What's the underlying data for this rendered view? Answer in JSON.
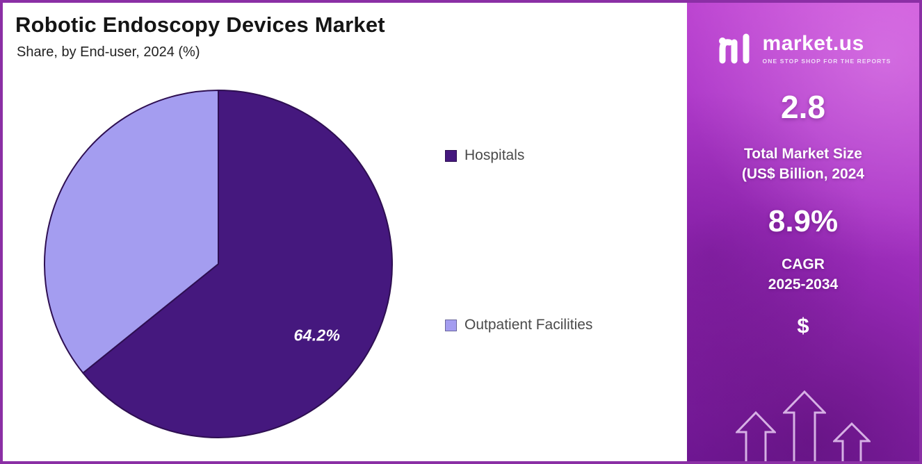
{
  "header": {
    "title": "Robotic Endoscopy Devices Market",
    "subtitle": "Share, by End-user, 2024 (%)"
  },
  "chart_data": {
    "type": "pie",
    "title": "Robotic Endoscopy Devices Market Share, by End-user, 2024 (%)",
    "labels": [
      "Hospitals",
      "Outpatient Facilities"
    ],
    "values": [
      64.2,
      35.8
    ],
    "colors": [
      "#45187E",
      "#A49DF0"
    ],
    "slice_stroke": "#2E0F52",
    "data_label": "64.2%",
    "start_angle_deg": 0,
    "direction": "clockwise",
    "legend_position": "right"
  },
  "sidebar": {
    "logo": {
      "brand": "market.us",
      "tagline": "ONE STOP SHOP FOR THE REPORTS"
    },
    "stats": [
      {
        "value": "2.8",
        "label_line1": "Total Market Size",
        "label_line2": "(US$ Billion, 2024"
      },
      {
        "value": "8.9%",
        "label_line1": "CAGR",
        "label_line2": "2025-2034"
      }
    ],
    "currency_symbol": "$"
  },
  "colors": {
    "frame_border": "#8B2FA5",
    "panel_gradient_top": "#C94FD8",
    "panel_gradient_bottom": "#7A1AA0",
    "title_text": "#151515",
    "legend_text": "#4A4A4A"
  }
}
